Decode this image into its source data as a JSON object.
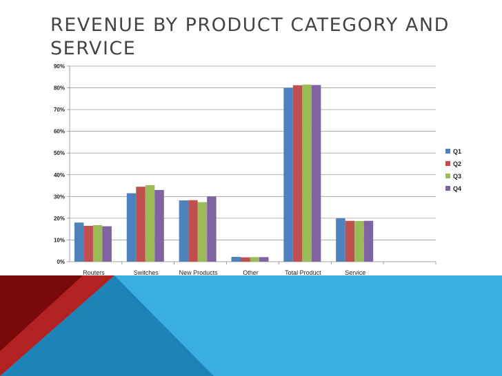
{
  "slide": {
    "title": "REVENUE BY PRODUCT CATEGORY AND SERVICE"
  },
  "colors": {
    "footer_dark_red": "#7a0a0a",
    "footer_red": "#b22222",
    "footer_blue": "#3aafdf",
    "footer_blue_dark": "#1e84b8"
  },
  "chart_data": {
    "type": "bar",
    "categories": [
      "Routers",
      "Switches",
      "New Products",
      "Other",
      "Total Product",
      "Service",
      ""
    ],
    "series": [
      {
        "name": "Q1",
        "color": "#4f81bd",
        "values": [
          0.18,
          0.315,
          0.282,
          0.022,
          0.8,
          0.2,
          null
        ]
      },
      {
        "name": "Q2",
        "color": "#c0504d",
        "values": [
          0.165,
          0.345,
          0.283,
          0.02,
          0.812,
          0.188,
          null
        ]
      },
      {
        "name": "Q3",
        "color": "#9bbb59",
        "values": [
          0.168,
          0.352,
          0.274,
          0.021,
          0.815,
          0.187,
          null
        ]
      },
      {
        "name": "Q4",
        "color": "#8064a2",
        "values": [
          0.163,
          0.33,
          0.3,
          0.021,
          0.813,
          0.188,
          null
        ]
      }
    ],
    "ylim": [
      0,
      0.9
    ],
    "yticks": [
      "0%",
      "10%",
      "20%",
      "30%",
      "40%",
      "50%",
      "60%",
      "70%",
      "80%",
      "90%"
    ],
    "grid": true,
    "legend": "right"
  }
}
